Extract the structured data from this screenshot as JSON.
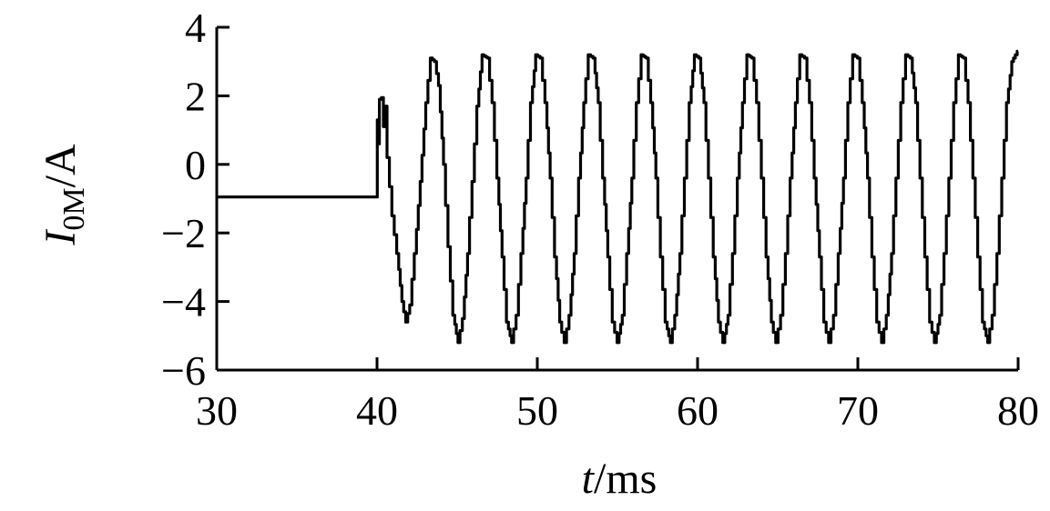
{
  "chart_data": {
    "type": "line",
    "title": "",
    "xlabel": {
      "var": "t",
      "unit": "/ms"
    },
    "ylabel": {
      "var": "I",
      "sub": "0M",
      "unit": "/A"
    },
    "xlim": [
      30,
      80
    ],
    "ylim": [
      -6,
      4
    ],
    "xticks": [
      30,
      40,
      50,
      60,
      70,
      80
    ],
    "yticks": [
      -6,
      -4,
      -2,
      0,
      2,
      4
    ],
    "xtick_labels": [
      "30",
      "40",
      "50",
      "60",
      "70",
      "80"
    ],
    "ytick_labels": [
      "−6",
      "−4",
      "−2",
      "0",
      "2",
      "4"
    ],
    "grid": false,
    "series": [
      {
        "color": "#000000",
        "points": [
          [
            30,
            -0.95
          ],
          [
            40,
            -0.95
          ],
          [
            40.03,
            1.3
          ],
          [
            40.1,
            0.6
          ],
          [
            40.2,
            1.9
          ],
          [
            40.35,
            1.95
          ],
          [
            40.45,
            1.1
          ],
          [
            40.55,
            1.7
          ],
          [
            40.7,
            0.2
          ],
          [
            41.0,
            -1.5
          ],
          [
            41.3,
            -2.6
          ],
          [
            41.6,
            -4.0
          ],
          [
            41.85,
            -4.6
          ],
          [
            42.1,
            -4.1
          ],
          [
            42.4,
            -2.6
          ],
          [
            42.75,
            -0.5
          ],
          [
            43.1,
            1.8
          ],
          [
            43.4,
            3.1
          ],
          [
            43.65,
            3.0
          ],
          [
            43.9,
            2.3
          ],
          [
            44.2,
            0.0
          ],
          [
            44.5,
            -2.4
          ],
          [
            44.8,
            -4.4
          ],
          [
            45.1,
            -5.2
          ],
          [
            45.4,
            -4.5
          ],
          [
            45.7,
            -2.6
          ],
          [
            46.0,
            -0.5
          ],
          [
            46.3,
            1.7
          ],
          [
            46.6,
            3.2
          ],
          [
            46.95,
            3.1
          ],
          [
            47.25,
            1.8
          ],
          [
            47.55,
            -0.4
          ],
          [
            47.85,
            -2.7
          ],
          [
            48.15,
            -4.6
          ],
          [
            48.45,
            -5.2
          ],
          [
            48.75,
            -4.4
          ],
          [
            49.05,
            -2.6
          ],
          [
            49.35,
            -0.4
          ],
          [
            49.65,
            1.8
          ],
          [
            49.95,
            3.2
          ],
          [
            50.25,
            3.1
          ],
          [
            50.55,
            1.8
          ],
          [
            50.85,
            -0.4
          ],
          [
            51.15,
            -2.7
          ],
          [
            51.45,
            -4.6
          ],
          [
            51.75,
            -5.2
          ],
          [
            52.05,
            -4.4
          ],
          [
            52.35,
            -2.6
          ],
          [
            52.65,
            -0.4
          ],
          [
            52.95,
            1.8
          ],
          [
            53.25,
            3.2
          ],
          [
            53.55,
            3.1
          ],
          [
            53.85,
            1.8
          ],
          [
            54.15,
            -0.4
          ],
          [
            54.45,
            -2.7
          ],
          [
            54.75,
            -4.6
          ],
          [
            55.05,
            -5.2
          ],
          [
            55.35,
            -4.4
          ],
          [
            55.65,
            -2.6
          ],
          [
            55.95,
            -0.4
          ],
          [
            56.25,
            1.8
          ],
          [
            56.55,
            3.2
          ],
          [
            56.85,
            3.1
          ],
          [
            57.15,
            1.8
          ],
          [
            57.45,
            -0.4
          ],
          [
            57.75,
            -2.7
          ],
          [
            58.05,
            -4.6
          ],
          [
            58.35,
            -5.2
          ],
          [
            58.65,
            -4.4
          ],
          [
            58.95,
            -2.6
          ],
          [
            59.25,
            -0.4
          ],
          [
            59.55,
            1.8
          ],
          [
            59.85,
            3.2
          ],
          [
            60.15,
            3.1
          ],
          [
            60.45,
            1.8
          ],
          [
            60.75,
            -0.4
          ],
          [
            61.05,
            -2.7
          ],
          [
            61.35,
            -4.6
          ],
          [
            61.65,
            -5.2
          ],
          [
            61.95,
            -4.4
          ],
          [
            62.25,
            -2.6
          ],
          [
            62.55,
            -0.4
          ],
          [
            62.85,
            1.8
          ],
          [
            63.15,
            3.2
          ],
          [
            63.45,
            3.1
          ],
          [
            63.75,
            1.8
          ],
          [
            64.05,
            -0.4
          ],
          [
            64.35,
            -2.7
          ],
          [
            64.65,
            -4.6
          ],
          [
            64.95,
            -5.2
          ],
          [
            65.25,
            -4.4
          ],
          [
            65.55,
            -2.6
          ],
          [
            65.85,
            -0.4
          ],
          [
            66.15,
            1.8
          ],
          [
            66.45,
            3.2
          ],
          [
            66.75,
            3.1
          ],
          [
            67.05,
            1.8
          ],
          [
            67.35,
            -0.4
          ],
          [
            67.65,
            -2.7
          ],
          [
            67.95,
            -4.6
          ],
          [
            68.25,
            -5.2
          ],
          [
            68.55,
            -4.4
          ],
          [
            68.85,
            -2.6
          ],
          [
            69.15,
            -0.4
          ],
          [
            69.45,
            1.8
          ],
          [
            69.75,
            3.2
          ],
          [
            70.05,
            3.1
          ],
          [
            70.35,
            1.8
          ],
          [
            70.65,
            -0.4
          ],
          [
            70.95,
            -2.7
          ],
          [
            71.25,
            -4.6
          ],
          [
            71.55,
            -5.2
          ],
          [
            71.85,
            -4.4
          ],
          [
            72.15,
            -2.6
          ],
          [
            72.45,
            -0.4
          ],
          [
            72.75,
            1.8
          ],
          [
            73.05,
            3.2
          ],
          [
            73.35,
            3.1
          ],
          [
            73.65,
            1.8
          ],
          [
            73.95,
            -0.4
          ],
          [
            74.25,
            -2.7
          ],
          [
            74.55,
            -4.6
          ],
          [
            74.85,
            -5.2
          ],
          [
            75.15,
            -4.4
          ],
          [
            75.45,
            -2.6
          ],
          [
            75.75,
            -0.4
          ],
          [
            76.05,
            1.8
          ],
          [
            76.35,
            3.2
          ],
          [
            76.65,
            3.1
          ],
          [
            76.95,
            1.8
          ],
          [
            77.25,
            -0.4
          ],
          [
            77.55,
            -2.7
          ],
          [
            77.85,
            -4.6
          ],
          [
            78.15,
            -5.2
          ],
          [
            78.45,
            -4.4
          ],
          [
            78.75,
            -2.6
          ],
          [
            79.05,
            -0.4
          ],
          [
            79.35,
            1.8
          ],
          [
            79.65,
            3.0
          ],
          [
            80.0,
            3.3
          ]
        ]
      }
    ]
  }
}
